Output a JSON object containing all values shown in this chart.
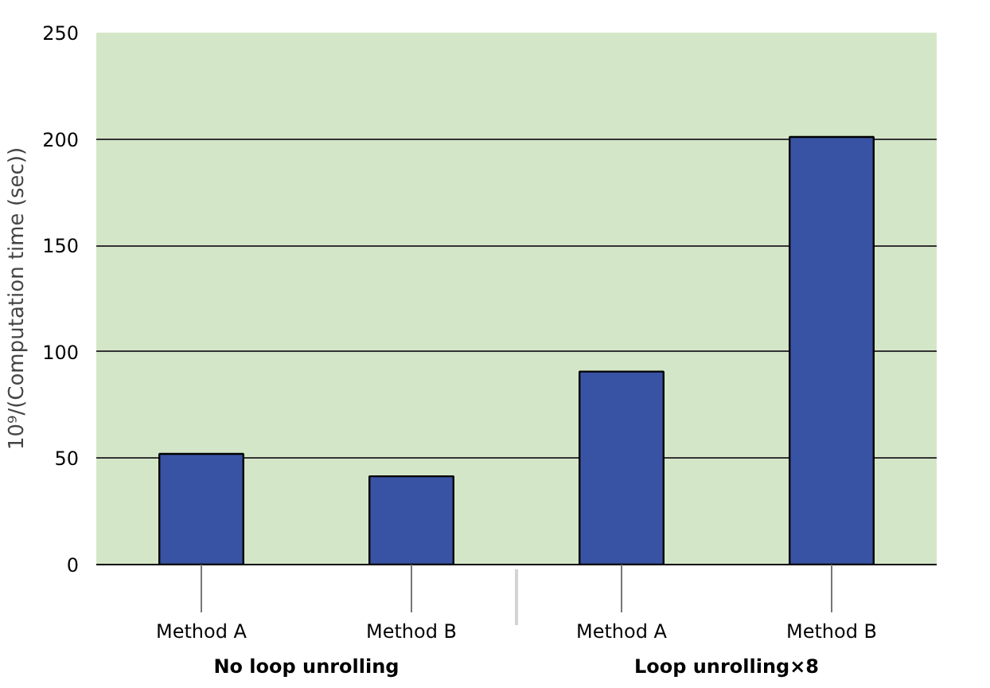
{
  "chart_data": {
    "type": "bar",
    "ylabel": "10⁹/(Computation time (sec))",
    "categories": [
      "Method A",
      "Method B",
      "Method A",
      "Method B"
    ],
    "annotations": [
      "No loop unrolling",
      "Loop unrolling×8"
    ],
    "values": [
      52,
      41.5,
      90.7,
      201
    ],
    "color": "#3953a4",
    "ylim": [
      0,
      250
    ],
    "yticks": [
      0,
      50,
      100,
      150,
      200,
      250
    ],
    "grid": "y"
  }
}
